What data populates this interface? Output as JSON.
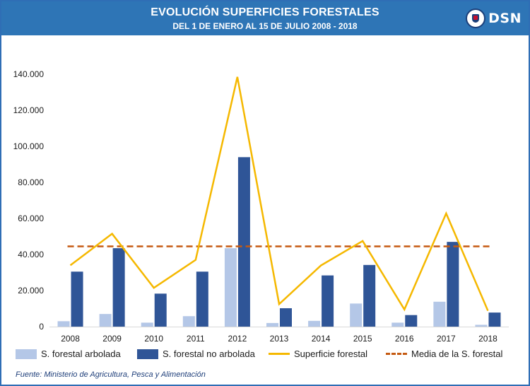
{
  "header": {
    "title": "EVOLUCIÓN SUPERFICIES FORESTALES",
    "subtitle": "DEL 1 DE ENERO AL 15 DE JULIO 2008 - 2018",
    "logo_text": "DSN"
  },
  "colors": {
    "header_bg": "#2e75b6",
    "arbolada": "#b4c7e7",
    "no_arbolada": "#2f5597",
    "superficie": "#f5b800",
    "media": "#c55a11"
  },
  "chart_data": {
    "type": "bar",
    "categories": [
      "2008",
      "2009",
      "2010",
      "2011",
      "2012",
      "2013",
      "2014",
      "2015",
      "2016",
      "2017",
      "2018"
    ],
    "ylim": [
      0,
      140000
    ],
    "yticks": [
      0,
      20000,
      40000,
      60000,
      80000,
      100000,
      120000,
      140000
    ],
    "ytick_labels": [
      "0",
      "20.000",
      "40.000",
      "60.000",
      "80.000",
      "100.000",
      "120.000",
      "140.000"
    ],
    "grid": false,
    "legend_position": "bottom",
    "series": [
      {
        "name": "S. forestal arbolada",
        "type": "bar",
        "values": [
          3000,
          7000,
          2200,
          5800,
          43500,
          2000,
          3200,
          12800,
          2200,
          13800,
          1000
        ]
      },
      {
        "name": "S. forestal no arbolada",
        "type": "bar",
        "values": [
          30500,
          43500,
          18300,
          30500,
          94000,
          10200,
          28400,
          34200,
          6400,
          47000,
          7800
        ]
      },
      {
        "name": "Superficie forestal",
        "type": "line",
        "values": [
          34000,
          51500,
          21500,
          37000,
          138500,
          12500,
          33900,
          47500,
          9500,
          62800,
          8800
        ]
      },
      {
        "name": "Media de la S. forestal",
        "type": "line-dashed",
        "values": [
          44500,
          44500,
          44500,
          44500,
          44500,
          44500,
          44500,
          44500,
          44500,
          44500,
          44500
        ]
      }
    ]
  },
  "source": "Fuente: Ministerio de Agricultura, Pesca y Alimentación"
}
